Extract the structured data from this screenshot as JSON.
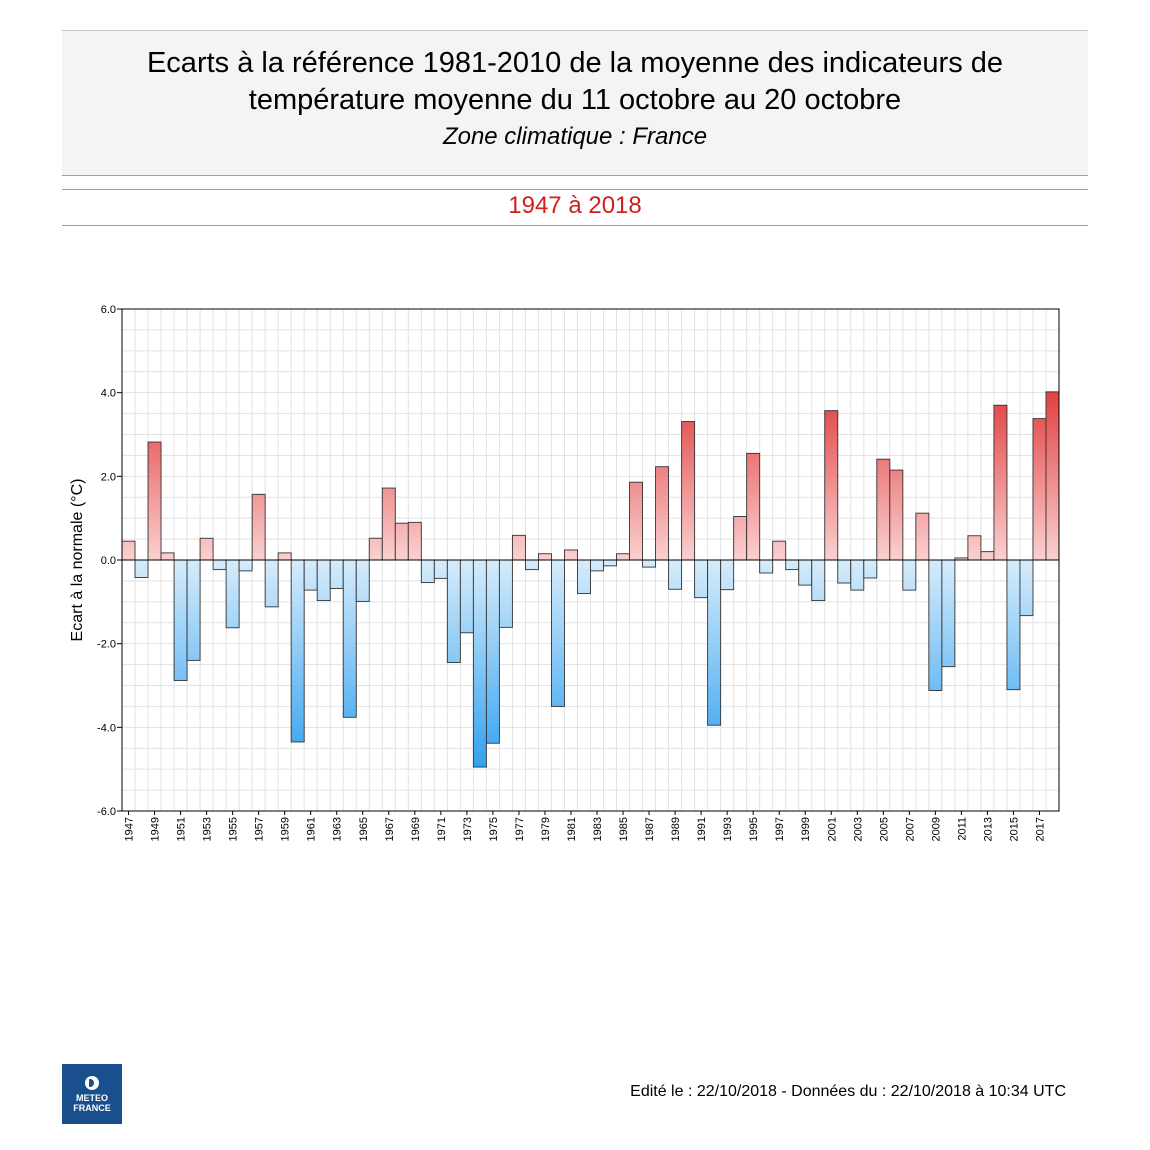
{
  "header": {
    "title_line1": "Ecarts à la référence 1981-2010 de la moyenne des indicateurs de",
    "title_line2": "température moyenne du 11 octobre au 20 octobre",
    "subtitle": "Zone climatique : France",
    "period": "1947 à 2018"
  },
  "footer": {
    "text": "Edité le : 22/10/2018 - Données du : 22/10/2018 à 10:34 UTC"
  },
  "logo": {
    "line1": "METEO",
    "line2": "FRANCE"
  },
  "colors": {
    "positive_dark": "#e03a3a",
    "positive_light": "#fbd0d0",
    "negative_dark": "#2e9ff0",
    "negative_light": "#d6ecfb",
    "period_red": "#d11f1f"
  },
  "chart_data": {
    "type": "bar",
    "ylabel": "Ecart à la normale (°C)",
    "ylim": [
      -6,
      6
    ],
    "yticks": [
      "6.0",
      "4.0",
      "2.0",
      "0.0",
      "-2.0",
      "-4.0",
      "-6.0"
    ],
    "grid": true,
    "categories": [
      1947,
      1948,
      1949,
      1950,
      1951,
      1952,
      1953,
      1954,
      1955,
      1956,
      1957,
      1958,
      1959,
      1960,
      1961,
      1962,
      1963,
      1964,
      1965,
      1966,
      1967,
      1968,
      1969,
      1970,
      1971,
      1972,
      1973,
      1974,
      1975,
      1976,
      1977,
      1978,
      1979,
      1980,
      1981,
      1982,
      1983,
      1984,
      1985,
      1986,
      1987,
      1988,
      1989,
      1990,
      1991,
      1992,
      1993,
      1994,
      1995,
      1996,
      1997,
      1998,
      1999,
      2000,
      2001,
      2002,
      2003,
      2004,
      2005,
      2006,
      2007,
      2008,
      2009,
      2010,
      2011,
      2012,
      2013,
      2014,
      2015,
      2016,
      2017,
      2018
    ],
    "values": [
      0.45,
      -0.42,
      2.82,
      0.17,
      -2.88,
      -2.4,
      0.52,
      -0.23,
      -1.62,
      -0.26,
      1.57,
      -1.12,
      0.17,
      -4.35,
      -0.72,
      -0.97,
      -0.68,
      -3.76,
      -0.99,
      0.52,
      1.72,
      0.88,
      0.9,
      -0.54,
      -0.44,
      -2.45,
      -1.74,
      -4.95,
      -4.38,
      -1.61,
      0.59,
      -0.23,
      0.15,
      -3.5,
      0.24,
      -0.8,
      -0.26,
      -0.14,
      0.15,
      1.86,
      -0.17,
      2.23,
      -0.7,
      3.31,
      -0.9,
      -3.95,
      -0.71,
      1.04,
      2.55,
      -0.31,
      0.45,
      -0.23,
      -0.6,
      -0.97,
      3.57,
      -0.55,
      -0.72,
      -0.43,
      2.41,
      2.15,
      -0.72,
      1.12,
      -3.12,
      -2.55,
      0.05,
      0.58,
      0.2,
      3.7,
      -3.1,
      -1.33,
      3.38,
      4.02
    ],
    "xtick_labels": [
      "1947",
      "1949",
      "1951",
      "1953",
      "1955",
      "1957",
      "1959",
      "1961",
      "1963",
      "1965",
      "1967",
      "1969",
      "1971",
      "1973",
      "1975",
      "1977",
      "1979",
      "1981",
      "1983",
      "1985",
      "1987",
      "1989",
      "1991",
      "1993",
      "1995",
      "1997",
      "1999",
      "2001",
      "2003",
      "2005",
      "2007",
      "2009",
      "2011",
      "2013",
      "2015",
      "2017"
    ]
  }
}
